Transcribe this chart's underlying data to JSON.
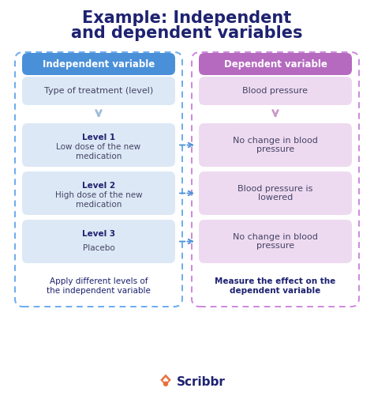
{
  "title_line1": "Example: Independent",
  "title_line2": "and dependent variables",
  "title_color": "#1e2270",
  "title_fontsize": 15,
  "bg_color": "#ffffff",
  "left_header_text": "Independent variable",
  "right_header_text": "Dependent variable",
  "left_header_bg": "#4a90d9",
  "right_header_bg": "#b56abf",
  "left_header_text_color": "#ffffff",
  "right_header_text_color": "#ffffff",
  "left_top_text": "Type of treatment (level)",
  "right_top_text": "Blood pressure",
  "left_top_bg": "#dce8f5",
  "right_top_bg": "#eedaf0",
  "left_levels": [
    {
      "label": "Level 1",
      "text": "Low dose of the new\nmedication"
    },
    {
      "label": "Level 2",
      "text": "High dose of the new\nmedication"
    },
    {
      "label": "Level 3",
      "text": "Placebo"
    }
  ],
  "right_levels": [
    "No change in blood\npressure",
    "Blood pressure is\nlowered",
    "No change in blood\npressure"
  ],
  "left_level_bg": "#dce8f5",
  "right_level_bg": "#eedaf0",
  "left_bottom_text": "Apply different levels of\nthe independent variable",
  "right_bottom_text": "Measure the effect on the\ndependent variable",
  "left_outer_border": "#6aabee",
  "right_outer_border": "#cc88dd",
  "arrow_color": "#4a90d9",
  "chevron_left_color": "#a0bcd8",
  "chevron_right_color": "#cc99cc",
  "label_color": "#1e2270",
  "body_text_color": "#444466",
  "left_bottom_bold": false,
  "right_bottom_bold": true,
  "bottom_text_color": "#1e2270",
  "scribbr_text": "Scribbr",
  "scribbr_color": "#1e2270",
  "scribbr_logo_color": "#e8703a"
}
